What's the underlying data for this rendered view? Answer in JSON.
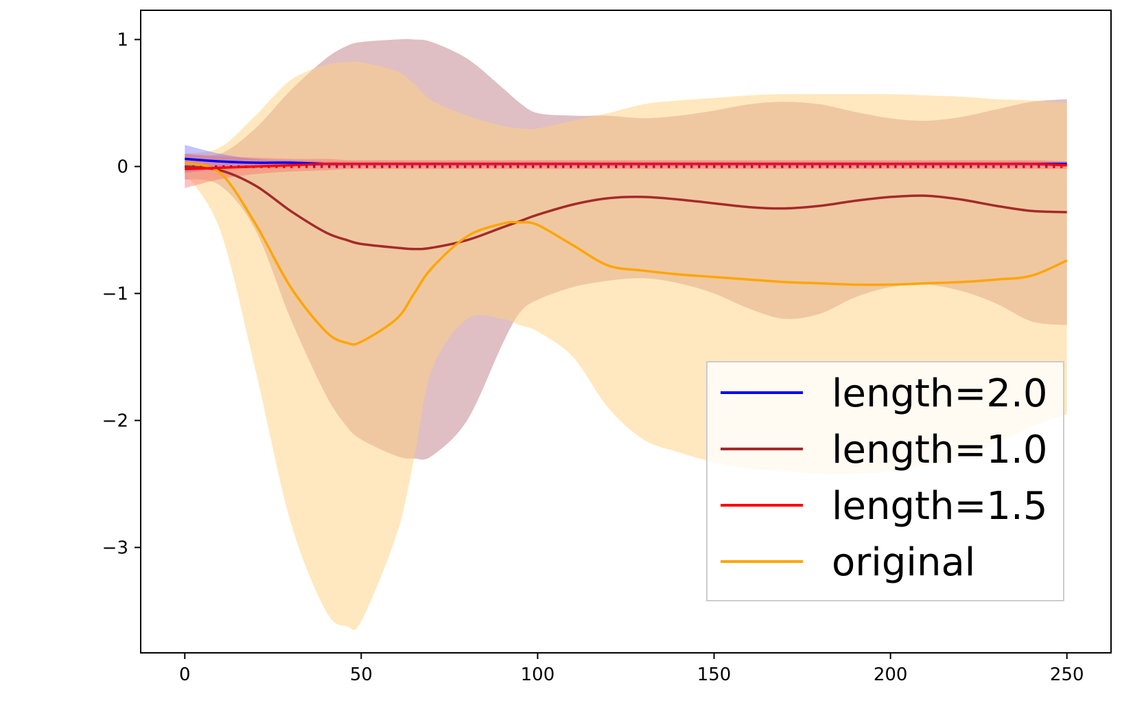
{
  "chart_data": {
    "type": "line",
    "title": "",
    "xlabel": "",
    "ylabel": "",
    "xlim": [
      -12.5,
      262.5
    ],
    "ylim": [
      -3.83,
      1.23
    ],
    "xticks": [
      0,
      50,
      100,
      150,
      200,
      250
    ],
    "yticks": [
      1,
      0,
      -1,
      -2,
      -3
    ],
    "xtick_labels": [
      "0",
      "50",
      "100",
      "150",
      "200",
      "250"
    ],
    "ytick_labels": [
      "1",
      "0",
      "−1",
      "−2",
      "−3"
    ],
    "grid": false,
    "legend_position": "lower-right",
    "x": [
      0,
      10,
      20,
      30,
      40,
      46,
      50,
      60,
      65,
      70,
      80,
      90,
      95,
      100,
      110,
      120,
      130,
      140,
      150,
      160,
      170,
      180,
      190,
      200,
      210,
      220,
      230,
      240,
      250
    ],
    "series": [
      {
        "name": "length=2.0",
        "color": "#0000ff",
        "band_color": "#6666ff",
        "mean": [
          0.06,
          0.04,
          0.03,
          0.03,
          0.02,
          0.02,
          0.02,
          0.02,
          0.02,
          0.02,
          0.02,
          0.02,
          0.02,
          0.02,
          0.02,
          0.02,
          0.02,
          0.02,
          0.02,
          0.02,
          0.02,
          0.02,
          0.02,
          0.02,
          0.02,
          0.02,
          0.02,
          0.02,
          0.02
        ],
        "upper": [
          0.17,
          0.1,
          0.06,
          0.05,
          0.04,
          0.04,
          0.04,
          0.04,
          0.04,
          0.04,
          0.04,
          0.04,
          0.04,
          0.04,
          0.04,
          0.04,
          0.04,
          0.04,
          0.04,
          0.04,
          0.04,
          0.04,
          0.04,
          0.04,
          0.04,
          0.04,
          0.04,
          0.04,
          0.04
        ],
        "lower": [
          -0.05,
          -0.02,
          0.0,
          0.01,
          0.0,
          0.0,
          0.0,
          0.0,
          0.0,
          0.0,
          0.0,
          0.0,
          0.0,
          0.0,
          0.0,
          0.0,
          0.0,
          0.0,
          0.0,
          0.0,
          0.0,
          0.0,
          0.0,
          0.0,
          0.0,
          0.0,
          0.0,
          0.0,
          0.0
        ]
      },
      {
        "name": "length=1.0",
        "color": "#a52a2a",
        "band_color": "#b0606a",
        "mean": [
          0.0,
          -0.03,
          -0.15,
          -0.35,
          -0.52,
          -0.58,
          -0.61,
          -0.64,
          -0.65,
          -0.64,
          -0.58,
          -0.48,
          -0.43,
          -0.38,
          -0.3,
          -0.25,
          -0.24,
          -0.26,
          -0.29,
          -0.32,
          -0.33,
          -0.31,
          -0.27,
          -0.24,
          -0.23,
          -0.26,
          -0.31,
          -0.35,
          -0.36
        ],
        "upper": [
          0.1,
          0.1,
          0.3,
          0.6,
          0.85,
          0.95,
          0.98,
          1.0,
          1.0,
          0.98,
          0.85,
          0.62,
          0.5,
          0.42,
          0.4,
          0.4,
          0.38,
          0.4,
          0.44,
          0.49,
          0.51,
          0.49,
          0.43,
          0.38,
          0.36,
          0.39,
          0.45,
          0.51,
          0.53
        ],
        "lower": [
          -0.1,
          -0.15,
          -0.5,
          -1.2,
          -1.8,
          -2.05,
          -2.15,
          -2.28,
          -2.3,
          -2.28,
          -2.0,
          -1.4,
          -1.15,
          -1.05,
          -0.95,
          -0.9,
          -0.88,
          -0.92,
          -1.0,
          -1.12,
          -1.2,
          -1.16,
          -1.03,
          -0.95,
          -0.93,
          -0.98,
          -1.08,
          -1.22,
          -1.25
        ]
      },
      {
        "name": "length=1.5",
        "color": "#ff0000",
        "band_color": "#ff6666",
        "mean": [
          -0.02,
          -0.01,
          0.0,
          0.01,
          0.02,
          0.02,
          0.02,
          0.02,
          0.02,
          0.02,
          0.02,
          0.02,
          0.02,
          0.02,
          0.02,
          0.02,
          0.02,
          0.02,
          0.02,
          0.02,
          0.02,
          0.02,
          0.02,
          0.02,
          0.02,
          0.02,
          0.02,
          0.02,
          0.01
        ],
        "upper": [
          0.1,
          0.08,
          0.07,
          0.06,
          0.06,
          0.05,
          0.05,
          0.05,
          0.05,
          0.05,
          0.05,
          0.05,
          0.05,
          0.05,
          0.05,
          0.05,
          0.05,
          0.05,
          0.05,
          0.05,
          0.05,
          0.05,
          0.05,
          0.05,
          0.05,
          0.05,
          0.05,
          0.05,
          0.04
        ],
        "lower": [
          -0.17,
          -0.1,
          -0.06,
          -0.04,
          -0.03,
          -0.02,
          -0.02,
          -0.02,
          -0.02,
          -0.02,
          -0.02,
          -0.02,
          -0.02,
          -0.02,
          -0.02,
          -0.02,
          -0.02,
          -0.02,
          -0.02,
          -0.02,
          -0.02,
          -0.02,
          -0.02,
          -0.02,
          -0.02,
          -0.02,
          -0.02,
          -0.02,
          -0.02
        ]
      },
      {
        "name": "original",
        "color": "#ffa500",
        "band_color": "#ffd27f",
        "mean": [
          0.03,
          -0.05,
          -0.45,
          -0.95,
          -1.3,
          -1.39,
          -1.38,
          -1.2,
          -1.0,
          -0.8,
          -0.55,
          -0.45,
          -0.44,
          -0.46,
          -0.62,
          -0.78,
          -0.82,
          -0.85,
          -0.87,
          -0.89,
          -0.91,
          -0.92,
          -0.93,
          -0.93,
          -0.92,
          -0.91,
          -0.89,
          -0.86,
          -0.74
        ],
        "upper": [
          0.1,
          0.15,
          0.4,
          0.68,
          0.8,
          0.82,
          0.82,
          0.75,
          0.65,
          0.52,
          0.4,
          0.32,
          0.3,
          0.3,
          0.36,
          0.42,
          0.49,
          0.52,
          0.54,
          0.56,
          0.57,
          0.57,
          0.57,
          0.57,
          0.56,
          0.55,
          0.53,
          0.52,
          0.5
        ],
        "lower": [
          -0.05,
          -0.5,
          -1.6,
          -2.8,
          -3.5,
          -3.62,
          -3.58,
          -2.9,
          -2.3,
          -1.6,
          -1.2,
          -1.2,
          -1.25,
          -1.3,
          -1.5,
          -1.9,
          -2.15,
          -2.25,
          -2.33,
          -2.38,
          -2.4,
          -2.42,
          -2.42,
          -2.4,
          -2.35,
          -2.28,
          -2.18,
          -2.05,
          -1.95
        ]
      }
    ],
    "legend_order": [
      0,
      1,
      2,
      3
    ],
    "dotted_lines": [
      {
        "color": "#0000ff",
        "y": 0.0
      },
      {
        "color": "#ff0000",
        "y": 0.0
      }
    ]
  }
}
